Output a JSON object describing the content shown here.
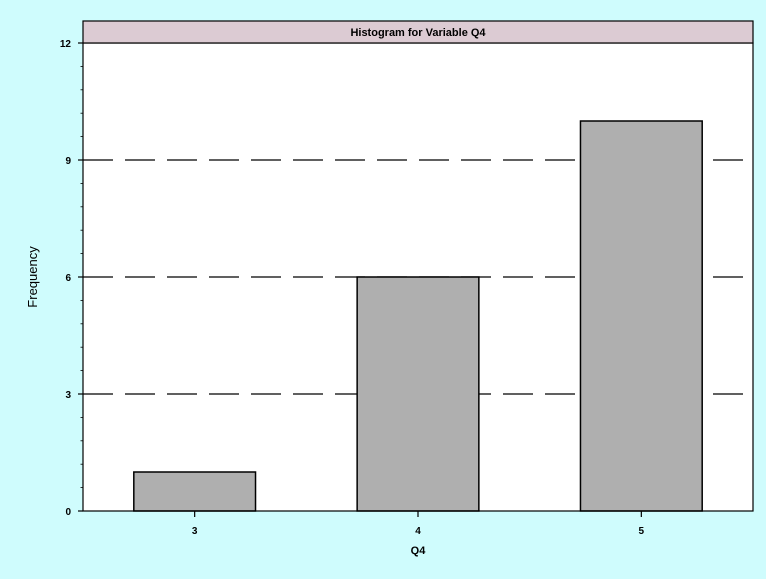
{
  "background_color": "#cffcfd",
  "chart_data": {
    "type": "bar",
    "title": "Histogram for Variable Q4",
    "xlabel": "Q4",
    "ylabel": "Frequency",
    "categories": [
      "3",
      "4",
      "5"
    ],
    "values": [
      1,
      6,
      10
    ],
    "ylim": [
      0,
      12
    ],
    "yticks": [
      "0",
      "3",
      "6",
      "9",
      "12"
    ],
    "grid": "dashed horizontal at 3, 6, 9",
    "bar_color": "#afafaf",
    "title_bar_color": "#dccbd3",
    "plot_background": "#ffffff"
  }
}
